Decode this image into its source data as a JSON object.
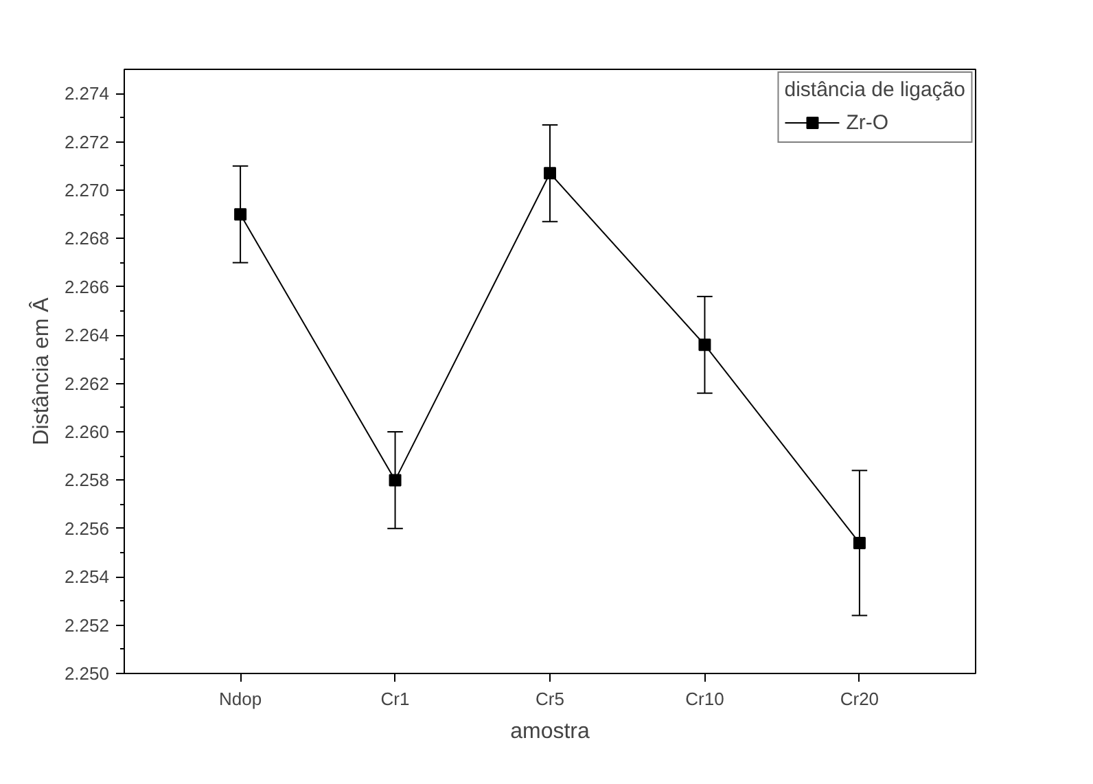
{
  "chart_data": {
    "type": "line",
    "xlabel": "amostra",
    "ylabel": "Distância em Â",
    "legend_title": "distância de ligação",
    "categories": [
      "Ndop",
      "Cr1",
      "Cr5",
      "Cr10",
      "Cr20"
    ],
    "series": [
      {
        "name": "Zr-O",
        "color": "#000000",
        "values": [
          2.269,
          2.258,
          2.2707,
          2.2636,
          2.2554
        ],
        "errors": [
          0.002,
          0.002,
          0.002,
          0.002,
          0.003
        ]
      }
    ],
    "ylim": [
      2.25,
      2.275
    ],
    "yticks": [
      {
        "value": 2.25,
        "label": "2.250"
      },
      {
        "value": 2.252,
        "label": "2.252"
      },
      {
        "value": 2.254,
        "label": "2.254"
      },
      {
        "value": 2.256,
        "label": "2.256"
      },
      {
        "value": 2.258,
        "label": "2.258"
      },
      {
        "value": 2.26,
        "label": "2.260"
      },
      {
        "value": 2.262,
        "label": "2.262"
      },
      {
        "value": 2.264,
        "label": "2.264"
      },
      {
        "value": 2.266,
        "label": "2.266"
      },
      {
        "value": 2.268,
        "label": "2.268"
      },
      {
        "value": 2.27,
        "label": "2.270"
      },
      {
        "value": 2.272,
        "label": "2.272"
      },
      {
        "value": 2.274,
        "label": "2.274"
      }
    ],
    "grid": false,
    "legend": "top right",
    "marker": "square",
    "line_style": "solid"
  }
}
